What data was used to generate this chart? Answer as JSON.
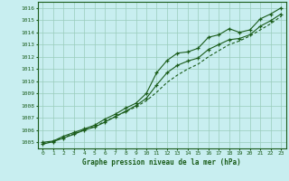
{
  "title": "Graphe pression niveau de la mer (hPa)",
  "background_color": "#c8eef0",
  "grid_color": "#99ccbb",
  "line_color": "#1a5c1a",
  "x_values": [
    0,
    1,
    2,
    3,
    4,
    5,
    6,
    7,
    8,
    9,
    10,
    11,
    12,
    13,
    14,
    15,
    16,
    17,
    18,
    19,
    20,
    21,
    22,
    23
  ],
  "line1": [
    1005.0,
    1005.1,
    1005.5,
    1005.8,
    1006.1,
    1006.4,
    1006.9,
    1007.3,
    1007.8,
    1008.2,
    1009.0,
    1010.7,
    1011.7,
    1012.3,
    1012.4,
    1012.7,
    1013.6,
    1013.8,
    1014.3,
    1014.0,
    1014.2,
    1015.1,
    1015.5,
    1016.0
  ],
  "line2": [
    1004.9,
    1005.1,
    1005.4,
    1005.7,
    1006.0,
    1006.3,
    1006.7,
    1007.1,
    1007.5,
    1007.9,
    1008.4,
    1009.1,
    1009.9,
    1010.5,
    1011.0,
    1011.4,
    1012.0,
    1012.5,
    1013.0,
    1013.3,
    1013.7,
    1014.2,
    1014.7,
    1015.3
  ],
  "line3": [
    1004.85,
    1005.05,
    1005.35,
    1005.65,
    1006.0,
    1006.25,
    1006.65,
    1007.1,
    1007.55,
    1008.0,
    1008.6,
    1009.7,
    1010.7,
    1011.3,
    1011.65,
    1011.9,
    1012.6,
    1013.0,
    1013.4,
    1013.5,
    1013.8,
    1014.5,
    1014.95,
    1015.5
  ],
  "ylim_min": 1004.5,
  "ylim_max": 1016.5,
  "ytick_min": 1005,
  "ytick_max": 1016,
  "xlim_min": -0.5,
  "xlim_max": 23.5
}
